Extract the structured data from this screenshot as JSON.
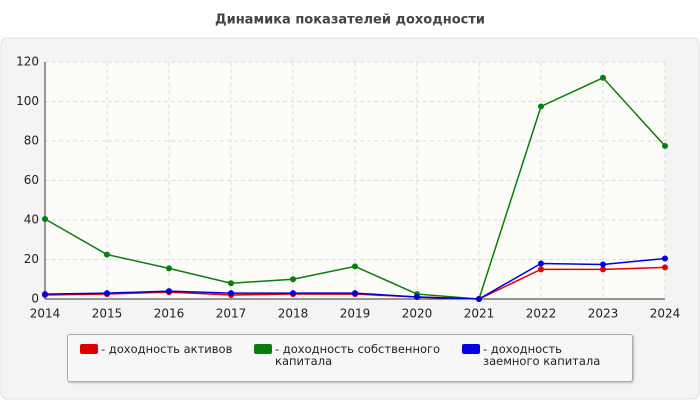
{
  "chart_data": {
    "type": "line",
    "title": "Динамика показателей доходности",
    "x": [
      2014,
      2015,
      2016,
      2017,
      2018,
      2019,
      2020,
      2021,
      2022,
      2023,
      2024
    ],
    "xlim": [
      2014,
      2024
    ],
    "xticks": [
      2014,
      2015,
      2016,
      2017,
      2018,
      2019,
      2020,
      2021,
      2022,
      2023,
      2024
    ],
    "ylim": [
      0,
      120
    ],
    "yticks": [
      0,
      20,
      40,
      60,
      80,
      100,
      120
    ],
    "grid": true,
    "series": [
      {
        "name": "- доходность активов",
        "color": "#e00000",
        "values": [
          2,
          2.5,
          3.5,
          2,
          2.5,
          2.5,
          1,
          0,
          15,
          15,
          16
        ]
      },
      {
        "name": "- доходность собственного капитала",
        "color": "#0a7d0a",
        "values": [
          40.5,
          22.5,
          15.5,
          8,
          10,
          16.5,
          2.5,
          0,
          97.5,
          112,
          77.5
        ]
      },
      {
        "name": "- доходность заемного капитала",
        "color": "#0000e0",
        "values": [
          2.5,
          3,
          4,
          3,
          3,
          3,
          1,
          0,
          18,
          17.5,
          20.5
        ]
      }
    ]
  }
}
